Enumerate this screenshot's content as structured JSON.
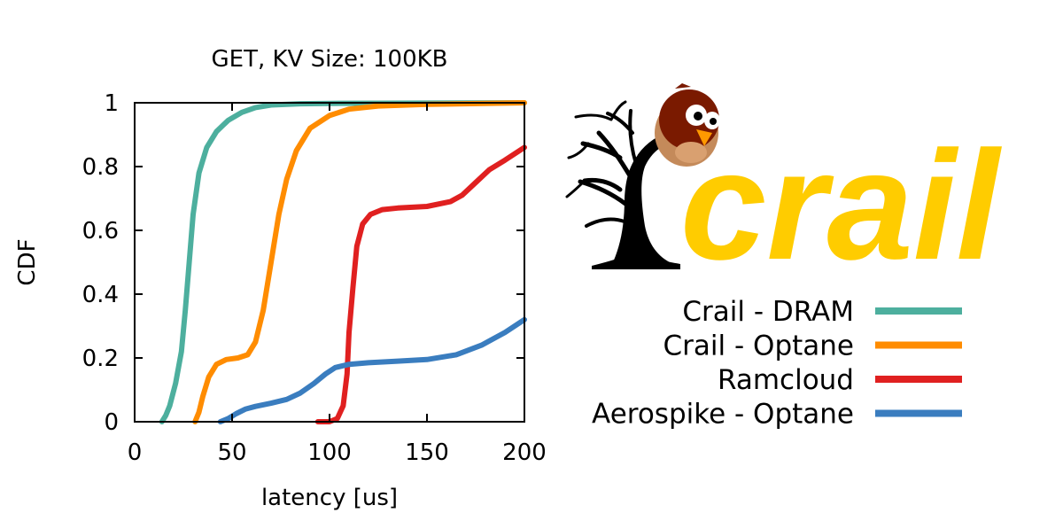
{
  "chart_data": {
    "type": "line",
    "title": "GET, KV Size: 100KB",
    "xlabel": "latency [us]",
    "ylabel": "CDF",
    "xlim": [
      0,
      200
    ],
    "ylim": [
      0,
      1
    ],
    "x_ticks": [
      "0",
      "50",
      "100",
      "150",
      "200"
    ],
    "y_ticks": [
      "0",
      "0.2",
      "0.4",
      "0.6",
      "0.8",
      "1"
    ],
    "grid": false,
    "legend_position": "right",
    "series": [
      {
        "name": "Crail - DRAM",
        "color": "#4daf9e",
        "points": [
          [
            14,
            0
          ],
          [
            16,
            0.02
          ],
          [
            18,
            0.05
          ],
          [
            21,
            0.12
          ],
          [
            24,
            0.22
          ],
          [
            26,
            0.35
          ],
          [
            28,
            0.5
          ],
          [
            30,
            0.65
          ],
          [
            33,
            0.78
          ],
          [
            37,
            0.86
          ],
          [
            42,
            0.91
          ],
          [
            48,
            0.945
          ],
          [
            55,
            0.97
          ],
          [
            62,
            0.985
          ],
          [
            70,
            0.993
          ],
          [
            85,
            0.997
          ],
          [
            100,
            0.998
          ],
          [
            200,
            1.0
          ]
        ]
      },
      {
        "name": "Crail - Optane",
        "color": "#ff8c00",
        "points": [
          [
            31,
            0
          ],
          [
            33,
            0.03
          ],
          [
            35,
            0.08
          ],
          [
            38,
            0.14
          ],
          [
            42,
            0.18
          ],
          [
            47,
            0.195
          ],
          [
            53,
            0.2
          ],
          [
            58,
            0.21
          ],
          [
            62,
            0.25
          ],
          [
            66,
            0.35
          ],
          [
            70,
            0.5
          ],
          [
            74,
            0.65
          ],
          [
            78,
            0.76
          ],
          [
            83,
            0.85
          ],
          [
            90,
            0.92
          ],
          [
            100,
            0.96
          ],
          [
            110,
            0.98
          ],
          [
            125,
            0.99
          ],
          [
            150,
            0.995
          ],
          [
            200,
            1.0
          ]
        ]
      },
      {
        "name": "Ramcloud",
        "color": "#e02020",
        "points": [
          [
            94,
            0
          ],
          [
            100,
            0
          ],
          [
            104,
            0.01
          ],
          [
            107,
            0.05
          ],
          [
            109,
            0.15
          ],
          [
            110,
            0.28
          ],
          [
            112,
            0.42
          ],
          [
            114,
            0.55
          ],
          [
            117,
            0.62
          ],
          [
            121,
            0.65
          ],
          [
            127,
            0.665
          ],
          [
            135,
            0.67
          ],
          [
            150,
            0.675
          ],
          [
            162,
            0.69
          ],
          [
            168,
            0.71
          ],
          [
            175,
            0.75
          ],
          [
            182,
            0.79
          ],
          [
            190,
            0.82
          ],
          [
            200,
            0.86
          ]
        ]
      },
      {
        "name": "Aerospike - Optane",
        "color": "#3a7dbf",
        "points": [
          [
            44,
            0
          ],
          [
            48,
            0.01
          ],
          [
            52,
            0.025
          ],
          [
            57,
            0.04
          ],
          [
            62,
            0.048
          ],
          [
            70,
            0.058
          ],
          [
            78,
            0.07
          ],
          [
            85,
            0.09
          ],
          [
            92,
            0.12
          ],
          [
            98,
            0.15
          ],
          [
            103,
            0.17
          ],
          [
            110,
            0.18
          ],
          [
            120,
            0.185
          ],
          [
            135,
            0.19
          ],
          [
            150,
            0.195
          ],
          [
            165,
            0.21
          ],
          [
            178,
            0.24
          ],
          [
            190,
            0.28
          ],
          [
            200,
            0.32
          ]
        ]
      }
    ],
    "logo": {
      "text": "crail",
      "color": "#ffcc00"
    }
  }
}
